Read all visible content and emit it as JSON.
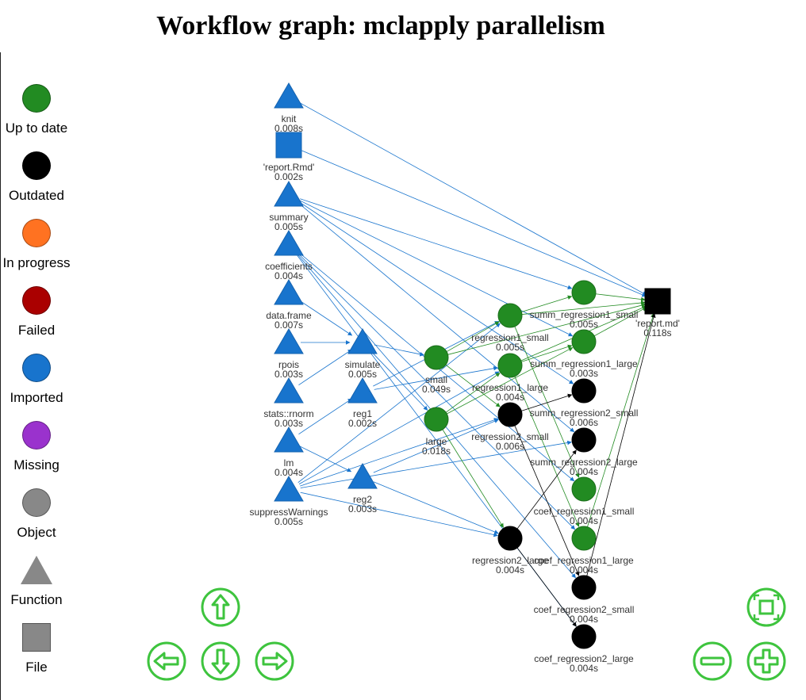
{
  "title": "Workflow graph: mclapply parallelism",
  "legend": [
    {
      "label": "Up to date",
      "shape": "dot",
      "color": "#228B22"
    },
    {
      "label": "Outdated",
      "shape": "dot",
      "color": "#000000"
    },
    {
      "label": "In progress",
      "shape": "dot",
      "color": "#FF7221"
    },
    {
      "label": "Failed",
      "shape": "dot",
      "color": "#AA0000"
    },
    {
      "label": "Imported",
      "shape": "dot",
      "color": "#1874CD"
    },
    {
      "label": "Missing",
      "shape": "dot",
      "color": "#9A32CD"
    },
    {
      "label": "Object",
      "shape": "dot",
      "color": "#888888"
    },
    {
      "label": "Function",
      "shape": "triangle",
      "color": "#888888"
    },
    {
      "label": "File",
      "shape": "square",
      "color": "#888888"
    }
  ],
  "colors": {
    "up_to_date": "#228B22",
    "outdated": "#000000",
    "imported": "#1874CD"
  },
  "nodes": [
    {
      "id": "knit",
      "label": "knit",
      "time": "0.008s",
      "type": "function",
      "status": "imported"
    },
    {
      "id": "report_rmd",
      "label": "'report.Rmd'",
      "time": "0.002s",
      "type": "file",
      "status": "imported"
    },
    {
      "id": "summary",
      "label": "summary",
      "time": "0.005s",
      "type": "function",
      "status": "imported"
    },
    {
      "id": "coefficients",
      "label": "coefficients",
      "time": "0.004s",
      "type": "function",
      "status": "imported"
    },
    {
      "id": "data_frame",
      "label": "data.frame",
      "time": "0.007s",
      "type": "function",
      "status": "imported"
    },
    {
      "id": "rpois",
      "label": "rpois",
      "time": "0.003s",
      "type": "function",
      "status": "imported"
    },
    {
      "id": "stats_rnorm",
      "label": "stats::rnorm",
      "time": "0.003s",
      "type": "function",
      "status": "imported"
    },
    {
      "id": "lm",
      "label": "lm",
      "time": "0.004s",
      "type": "function",
      "status": "imported"
    },
    {
      "id": "suppressWarnings",
      "label": "suppressWarnings",
      "time": "0.005s",
      "type": "function",
      "status": "imported"
    },
    {
      "id": "simulate",
      "label": "simulate",
      "time": "0.005s",
      "type": "function",
      "status": "imported"
    },
    {
      "id": "reg1",
      "label": "reg1",
      "time": "0.002s",
      "type": "function",
      "status": "imported"
    },
    {
      "id": "reg2",
      "label": "reg2",
      "time": "0.003s",
      "type": "function",
      "status": "imported"
    },
    {
      "id": "small",
      "label": "small",
      "time": "0.049s",
      "type": "object",
      "status": "up_to_date"
    },
    {
      "id": "large",
      "label": "large",
      "time": "0.018s",
      "type": "object",
      "status": "up_to_date"
    },
    {
      "id": "regression1_small",
      "label": "regression1_small",
      "time": "0.005s",
      "type": "object",
      "status": "up_to_date"
    },
    {
      "id": "regression1_large",
      "label": "regression1_large",
      "time": "0.004s",
      "type": "object",
      "status": "up_to_date"
    },
    {
      "id": "regression2_small",
      "label": "regression2_small",
      "time": "0.006s",
      "type": "object",
      "status": "outdated"
    },
    {
      "id": "regression2_large",
      "label": "regression2_large",
      "time": "0.004s",
      "type": "object",
      "status": "outdated"
    },
    {
      "id": "summ_regression1_small",
      "label": "summ_regression1_small",
      "time": "0.005s",
      "type": "object",
      "status": "up_to_date"
    },
    {
      "id": "summ_regression1_large",
      "label": "summ_regression1_large",
      "time": "0.003s",
      "type": "object",
      "status": "up_to_date"
    },
    {
      "id": "summ_regression2_small",
      "label": "summ_regression2_small",
      "time": "0.006s",
      "type": "object",
      "status": "outdated"
    },
    {
      "id": "summ_regression2_large",
      "label": "summ_regression2_large",
      "time": "0.004s",
      "type": "object",
      "status": "outdated"
    },
    {
      "id": "coef_regression1_small",
      "label": "coef_regression1_small",
      "time": "0.004s",
      "type": "object",
      "status": "up_to_date"
    },
    {
      "id": "coef_regression1_large",
      "label": "coef_regression1_large",
      "time": "0.004s",
      "type": "object",
      "status": "up_to_date"
    },
    {
      "id": "coef_regression2_small",
      "label": "coef_regression2_small",
      "time": "0.004s",
      "type": "object",
      "status": "outdated"
    },
    {
      "id": "coef_regression2_large",
      "label": "coef_regression2_large",
      "time": "0.004s",
      "type": "object",
      "status": "outdated"
    },
    {
      "id": "report_md",
      "label": "'report.md'",
      "time": "0.118s",
      "type": "file",
      "status": "outdated"
    }
  ],
  "edges": [
    [
      "knit",
      "report_md"
    ],
    [
      "report_rmd",
      "report_md"
    ],
    [
      "summary",
      "summ_regression1_small"
    ],
    [
      "summary",
      "summ_regression1_large"
    ],
    [
      "summary",
      "summ_regression2_small"
    ],
    [
      "summary",
      "summ_regression2_large"
    ],
    [
      "coefficients",
      "coef_regression1_small"
    ],
    [
      "coefficients",
      "coef_regression1_large"
    ],
    [
      "coefficients",
      "coef_regression2_small"
    ],
    [
      "coefficients",
      "coef_regression2_large"
    ],
    [
      "data_frame",
      "simulate"
    ],
    [
      "rpois",
      "simulate"
    ],
    [
      "stats_rnorm",
      "simulate"
    ],
    [
      "lm",
      "reg1"
    ],
    [
      "lm",
      "reg2"
    ],
    [
      "suppressWarnings",
      "regression1_small"
    ],
    [
      "suppressWarnings",
      "regression1_large"
    ],
    [
      "suppressWarnings",
      "regression2_small"
    ],
    [
      "suppressWarnings",
      "regression2_large"
    ],
    [
      "suppressWarnings",
      "summ_regression2_large"
    ],
    [
      "simulate",
      "small"
    ],
    [
      "simulate",
      "large"
    ],
    [
      "reg1",
      "regression1_small"
    ],
    [
      "reg1",
      "regression1_large"
    ],
    [
      "reg2",
      "regression2_small"
    ],
    [
      "reg2",
      "regression2_large"
    ],
    [
      "small",
      "regression1_small"
    ],
    [
      "small",
      "regression2_small"
    ],
    [
      "small",
      "report_md"
    ],
    [
      "large",
      "regression1_large"
    ],
    [
      "large",
      "regression2_large"
    ],
    [
      "large",
      "summ_regression1_large"
    ],
    [
      "regression1_small",
      "summ_regression1_small"
    ],
    [
      "regression1_small",
      "coef_regression1_small"
    ],
    [
      "regression1_small",
      "report_md"
    ],
    [
      "regression1_large",
      "summ_regression1_large"
    ],
    [
      "regression1_large",
      "coef_regression1_large"
    ],
    [
      "regression1_large",
      "report_md"
    ],
    [
      "regression2_small",
      "summ_regression2_small"
    ],
    [
      "regression2_small",
      "coef_regression2_small"
    ],
    [
      "regression2_large",
      "summ_regression2_large"
    ],
    [
      "regression2_large",
      "coef_regression2_large"
    ],
    [
      "summ_regression1_small",
      "report_md"
    ],
    [
      "summ_regression1_large",
      "report_md"
    ],
    [
      "coef_regression1_large",
      "report_md"
    ],
    [
      "coef_regression2_small",
      "report_md"
    ]
  ],
  "controls": [
    {
      "name": "pan-up",
      "icon": "arrow-up-icon"
    },
    {
      "name": "pan-left",
      "icon": "arrow-left-icon"
    },
    {
      "name": "pan-down",
      "icon": "arrow-down-icon"
    },
    {
      "name": "pan-right",
      "icon": "arrow-right-icon"
    },
    {
      "name": "fit-view",
      "icon": "fit-to-screen-icon"
    },
    {
      "name": "zoom-out",
      "icon": "zoom-out-icon"
    },
    {
      "name": "zoom-in",
      "icon": "zoom-in-icon"
    }
  ]
}
